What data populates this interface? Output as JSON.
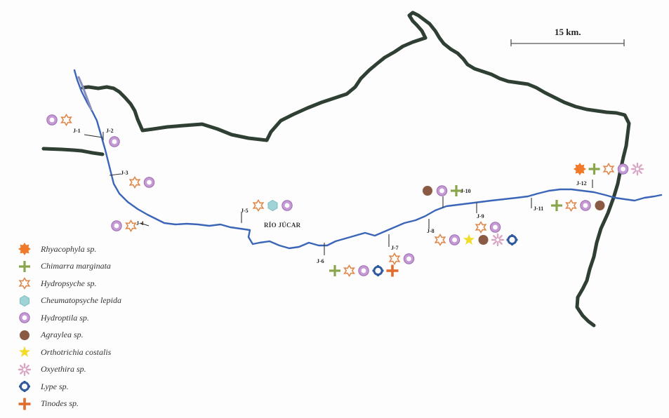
{
  "scale_bar": {
    "label": "15 km."
  },
  "river": {
    "label": "RÍO JÚCAR"
  },
  "legend": [
    {
      "key": "rhyacophyla",
      "label": "Rhyacophyla sp.",
      "icon": "orange-burst-icon",
      "color": "#f07a2a"
    },
    {
      "key": "chimarra",
      "label": "Chimarra marginata",
      "icon": "green-cross-icon",
      "color": "#8aa64a"
    },
    {
      "key": "hydropsyche",
      "label": "Hydropsyche sp.",
      "icon": "orange-star-outline-icon",
      "color": "#e0874a"
    },
    {
      "key": "cheumatopsyche",
      "label": "Cheumatopsyche lepida",
      "icon": "teal-hexagon-icon",
      "color": "#9fd3d6"
    },
    {
      "key": "hydroptila",
      "label": "Hydroptila sp.",
      "icon": "purple-ring-icon",
      "color": "#b07ec2"
    },
    {
      "key": "agraylea",
      "label": "Agraylea sp.",
      "icon": "brown-dot-icon",
      "color": "#8a5a45"
    },
    {
      "key": "orthotrichia",
      "label": "Orthotrichia costalis",
      "icon": "yellow-star-icon",
      "color": "#f2dc2a"
    },
    {
      "key": "oxyethira",
      "label": "Oxyethira sp.",
      "icon": "pink-asterisk-icon",
      "color": "#d8a6c4"
    },
    {
      "key": "lype",
      "label": "Lype sp.",
      "icon": "blue-gear-icon",
      "color": "#2f5a9e"
    },
    {
      "key": "tinodes",
      "label": "Tinodes sp.",
      "icon": "orange-plus-icon",
      "color": "#e36b2e"
    }
  ],
  "sites": [
    {
      "label": "J-1",
      "species": [
        "hydroptila",
        "hydropsyche"
      ]
    },
    {
      "label": "J-2",
      "species": [
        "hydroptila"
      ]
    },
    {
      "label": "J-3",
      "species": [
        "hydropsyche",
        "hydroptila"
      ]
    },
    {
      "label": "J-4",
      "species": [
        "hydroptila",
        "hydropsyche"
      ]
    },
    {
      "label": "J-5",
      "species": [
        "hydropsyche",
        "cheumatopsyche",
        "hydroptila"
      ]
    },
    {
      "label": "J-6",
      "species": [
        "chimarra",
        "hydropsyche",
        "hydroptila",
        "lype",
        "tinodes"
      ]
    },
    {
      "label": "J-7",
      "species": [
        "hydropsyche",
        "hydroptila"
      ]
    },
    {
      "label": "J-8",
      "species": [
        "hydropsyche",
        "hydroptila",
        "orthotrichia",
        "agraylea",
        "oxyethira",
        "lype"
      ]
    },
    {
      "label": "J-9",
      "species": [
        "hydropsyche",
        "hydroptila"
      ]
    },
    {
      "label": "J-10",
      "species": [
        "agraylea",
        "hydroptila",
        "chimarra"
      ]
    },
    {
      "label": "J-11",
      "species": [
        "chimarra",
        "hydropsyche",
        "hydroptila",
        "agraylea"
      ]
    },
    {
      "label": "J-12",
      "species": [
        "rhyacophyla",
        "chimarra",
        "hydropsyche",
        "hydroptila",
        "oxyethira"
      ]
    }
  ]
}
